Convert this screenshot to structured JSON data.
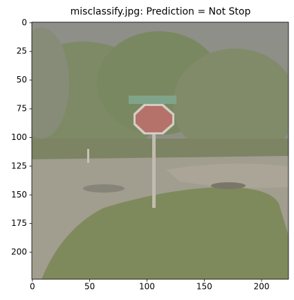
{
  "chart_data": {
    "type": "image",
    "title": "misclassify.jpg: Prediction = Not Stop",
    "xlim": [
      -0.5,
      223.5
    ],
    "ylim": [
      223.5,
      -0.5
    ],
    "xticks": [
      0,
      50,
      100,
      150,
      200
    ],
    "yticks": [
      0,
      25,
      50,
      75,
      100,
      125,
      150,
      175,
      200
    ]
  }
}
